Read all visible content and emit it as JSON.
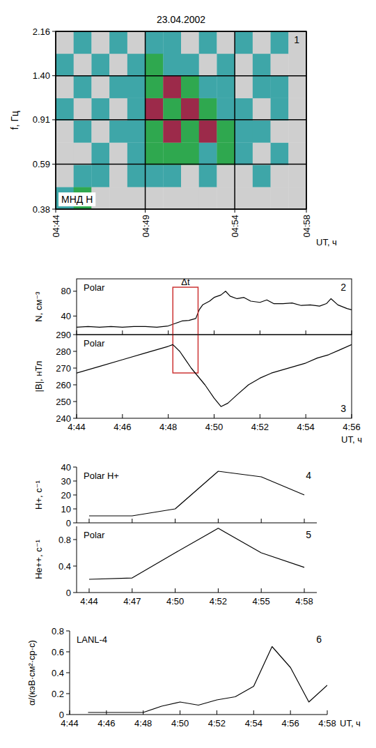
{
  "chart_data": [
    {
      "type": "heatmap",
      "title": "23.04.2002",
      "y_label": "f, Гц",
      "x_label": "UT, ч",
      "annotation": "МНД H",
      "panel": "1",
      "log": "y",
      "grid": true,
      "xlim": [
        44,
        58
      ],
      "xticks": [
        {
          "value": 44,
          "label": "04:44"
        },
        {
          "value": 49,
          "label": "04:49"
        },
        {
          "value": 54,
          "label": "04:54"
        },
        {
          "value": 58,
          "label": "04:58"
        }
      ],
      "ylim": [
        0.38,
        2.16
      ],
      "yticks": [
        0.38,
        0.59,
        0.91,
        {
          "value": 1.4,
          "label": "1.40"
        },
        2.16
      ],
      "colors": [
        "#cfcfcf",
        "#3ea6a8",
        "#2fa84f",
        "#9c2a4a"
      ],
      "cells": [
        [
          1,
          2,
          0,
          0,
          0,
          0,
          0,
          0,
          0,
          0,
          0,
          0,
          0,
          0
        ],
        [
          0,
          1,
          1,
          0,
          1,
          1,
          1,
          0,
          1,
          0,
          0,
          1,
          0,
          0
        ],
        [
          0,
          0,
          1,
          0,
          1,
          2,
          2,
          2,
          1,
          2,
          1,
          0,
          1,
          0
        ],
        [
          0,
          1,
          0,
          1,
          1,
          2,
          3,
          2,
          3,
          2,
          1,
          1,
          0,
          0
        ],
        [
          1,
          0,
          1,
          0,
          1,
          3,
          2,
          3,
          2,
          1,
          1,
          0,
          1,
          0
        ],
        [
          0,
          1,
          0,
          1,
          1,
          2,
          3,
          2,
          1,
          1,
          0,
          1,
          1,
          0
        ],
        [
          1,
          0,
          1,
          0,
          1,
          2,
          1,
          1,
          0,
          1,
          0,
          1,
          0,
          0
        ],
        [
          0,
          1,
          0,
          1,
          0,
          1,
          1,
          0,
          1,
          0,
          1,
          0,
          1,
          0
        ]
      ]
    },
    {
      "type": "line",
      "y_label": "N, см⁻³",
      "annotation": "Polar",
      "panel": "2",
      "tick_labels": "y",
      "color": "#000000",
      "xlim": [
        44,
        56
      ],
      "xticks": [
        {
          "value": 44,
          "label": "4:44"
        },
        {
          "value": 46,
          "label": "4:46"
        },
        {
          "value": 48,
          "label": "4:48"
        },
        {
          "value": 50,
          "label": "4:50"
        },
        {
          "value": 52,
          "label": "4:52"
        },
        {
          "value": 54,
          "label": "4:54"
        },
        {
          "value": 56,
          "label": "4:56"
        }
      ],
      "ylim": [
        10,
        100
      ],
      "yticks": [
        40,
        80
      ],
      "x": [
        44,
        44.5,
        45,
        45.5,
        46,
        46.5,
        47,
        47.5,
        48,
        48.3,
        48.6,
        48.9,
        49.2,
        49.35,
        49.5,
        49.8,
        50,
        50.3,
        50.5,
        50.7,
        51,
        51.3,
        51.6,
        52,
        52.3,
        52.6,
        53,
        53.4,
        53.8,
        54.2,
        54.6,
        54.9,
        55.1,
        55.4,
        55.8,
        56
      ],
      "values": [
        22,
        23,
        22,
        23,
        22,
        23,
        23,
        22,
        24,
        28,
        32,
        33,
        36,
        50,
        58,
        64,
        70,
        74,
        80,
        72,
        68,
        70,
        64,
        62,
        66,
        60,
        60,
        61,
        57,
        58,
        56,
        60,
        68,
        58,
        52,
        50
      ],
      "annotations": [
        {
          "text": "Δt",
          "x0": 48.2,
          "x1": 49.3,
          "color": "#cc3333"
        }
      ]
    },
    {
      "type": "line",
      "y_label": "|B|, нТл",
      "x_label": "UT, ч",
      "annotation": "Polar",
      "panel": "3",
      "color": "#000000",
      "xlim": [
        44,
        56
      ],
      "xticks": [
        {
          "value": 44,
          "label": "4:44"
        },
        {
          "value": 46,
          "label": "4:46"
        },
        {
          "value": 48,
          "label": "4:48"
        },
        {
          "value": 50,
          "label": "4:50"
        },
        {
          "value": 52,
          "label": "4:52"
        },
        {
          "value": 54,
          "label": "4:54"
        },
        {
          "value": 56,
          "label": "4:56"
        }
      ],
      "ylim": [
        240,
        290
      ],
      "yticks": [
        240,
        250,
        260,
        270,
        280,
        290
      ],
      "x": [
        44,
        45,
        46,
        47,
        48,
        48.2,
        48.5,
        48.8,
        49,
        49.3,
        49.6,
        50,
        50.3,
        50.6,
        51,
        51.5,
        52,
        52.5,
        53,
        53.5,
        54,
        54.5,
        55,
        55.5,
        56
      ],
      "values": [
        267,
        271,
        275,
        279,
        283,
        284,
        280,
        274,
        270,
        265,
        260,
        252,
        247,
        249,
        254,
        260,
        264,
        267,
        269,
        271,
        273,
        276,
        278,
        281,
        284
      ]
    },
    {
      "type": "line",
      "y_label": "H+, с⁻¹",
      "annotation": "Polar H+",
      "panel": "4",
      "tick_labels": "y",
      "color": "#000000",
      "categories": [
        null,
        null,
        null,
        null,
        null,
        null
      ],
      "ylim": [
        0,
        40
      ],
      "yticks": [
        0,
        10,
        20,
        30,
        40
      ],
      "values": [
        5,
        5,
        10,
        37,
        33,
        20
      ]
    },
    {
      "type": "line",
      "y_label": "He++, с⁻¹",
      "annotation": "Polar",
      "panel": "5",
      "color": "#000000",
      "categories": [
        "4:44",
        "4:47",
        "4:50",
        "4:52",
        "4:55",
        "4:58"
      ],
      "ylim": [
        0,
        1
      ],
      "yticks": [
        0,
        0.4,
        0.8
      ],
      "values": [
        0.2,
        0.22,
        0.6,
        0.97,
        0.6,
        0.38
      ]
    },
    {
      "type": "line",
      "y_label": "α/(кэВ·см²·ср·с)",
      "x_label": "UT, ч",
      "annotation": "LANL-4",
      "panel": "6",
      "color": "#000000",
      "xlim": [
        44,
        58
      ],
      "xticks": [
        {
          "value": 44,
          "label": "4:44"
        },
        {
          "value": 46,
          "label": "4:46"
        },
        {
          "value": 48,
          "label": "4:48"
        },
        {
          "value": 50,
          "label": "4:50"
        },
        {
          "value": 52,
          "label": "4:52"
        },
        {
          "value": 54,
          "label": "4:54"
        },
        {
          "value": 56,
          "label": "4:56"
        },
        {
          "value": 58,
          "label": "4:58"
        }
      ],
      "ylim": [
        0,
        0.8
      ],
      "yticks": [
        0,
        0.2,
        0.4,
        0.6,
        0.8
      ],
      "x": [
        45,
        46,
        47,
        48,
        49,
        50,
        51,
        52,
        53,
        54,
        55,
        56,
        57,
        58
      ],
      "values": [
        0.02,
        0.02,
        0.02,
        0.02,
        0.08,
        0.12,
        0.09,
        0.14,
        0.17,
        0.27,
        0.65,
        0.45,
        0.12,
        0.28
      ]
    }
  ]
}
